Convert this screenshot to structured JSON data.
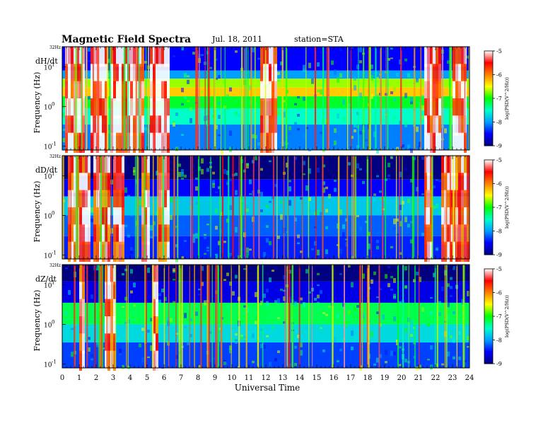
{
  "header": {
    "title": "Magnetic  Field  Spectra",
    "date": "Jul.  18,  2011",
    "station": "station=STA"
  },
  "chart_data": {
    "type": "heatmap",
    "xlabel": "Universal Time",
    "xlim": [
      0,
      24
    ],
    "x_ticks": [
      "0",
      "1",
      "2",
      "3",
      "4",
      "5",
      "6",
      "7",
      "8",
      "9",
      "10",
      "11",
      "12",
      "13",
      "14",
      "15",
      "16",
      "17",
      "18",
      "19",
      "20",
      "21",
      "22",
      "23",
      "24"
    ],
    "ylabel": "Frequency  (Hz)",
    "yscale": "log",
    "ylim": [
      0.08,
      32
    ],
    "y_top_label": "32Hz",
    "y_ticks": [
      {
        "value": 10,
        "label": "10",
        "exp": "1"
      },
      {
        "value": 1,
        "label": "10",
        "exp": "0"
      },
      {
        "value": 0.1,
        "label": "10",
        "exp": "-1"
      }
    ],
    "colorbar": {
      "label": "log(PSD(V^2/Hz))",
      "range": [
        -9,
        -5
      ],
      "ticks": [
        "-5",
        "-6",
        "-7",
        "-8",
        "-9"
      ],
      "colors": [
        "#000080",
        "#0000ff",
        "#00a0ff",
        "#00ffc8",
        "#00ff00",
        "#ffff00",
        "#ff8000",
        "#ff0000",
        "#ffffff"
      ]
    },
    "panels": [
      {
        "name": "dH/dt",
        "bands": [
          {
            "fmin": 8,
            "fmax": 32,
            "level": -8.5
          },
          {
            "fmin": 5,
            "fmax": 8,
            "level": -8.0
          },
          {
            "fmin": 3,
            "fmax": 5,
            "level": -6.7
          },
          {
            "fmin": 1.8,
            "fmax": 3,
            "level": -6.3
          },
          {
            "fmin": 0.9,
            "fmax": 1.8,
            "level": -7.1
          },
          {
            "fmin": 0.35,
            "fmax": 0.9,
            "level": -7.5
          },
          {
            "fmin": 0.08,
            "fmax": 0.35,
            "level": -8.1
          }
        ],
        "disturbed_intervals": [
          [
            0.1,
            1.3
          ],
          [
            1.6,
            2.6
          ],
          [
            2.8,
            4.7
          ],
          [
            5.1,
            6.2
          ],
          [
            11.6,
            12.6
          ],
          [
            21.2,
            22.2
          ],
          [
            23.0,
            23.8
          ]
        ],
        "disturbed_level": -5.2
      },
      {
        "name": "dD/dt",
        "bands": [
          {
            "fmin": 8,
            "fmax": 32,
            "level": -9.0
          },
          {
            "fmin": 3,
            "fmax": 8,
            "level": -8.5
          },
          {
            "fmin": 1.0,
            "fmax": 3,
            "level": -7.8
          },
          {
            "fmin": 0.3,
            "fmax": 1.0,
            "level": -8.2
          },
          {
            "fmin": 0.08,
            "fmax": 0.3,
            "level": -8.4
          }
        ],
        "disturbed_intervals": [
          [
            0.2,
            1.5
          ],
          [
            1.8,
            2.7
          ],
          [
            2.9,
            3.6
          ],
          [
            4.6,
            5.1
          ],
          [
            5.6,
            6.2
          ],
          [
            21.2,
            21.7
          ],
          [
            22.3,
            23.9
          ]
        ],
        "disturbed_level": -5.4
      },
      {
        "name": "dZ/dt",
        "bands": [
          {
            "fmin": 12,
            "fmax": 32,
            "level": -9.0
          },
          {
            "fmin": 3.5,
            "fmax": 12,
            "level": -8.6
          },
          {
            "fmin": 1.0,
            "fmax": 3.5,
            "level": -7.2
          },
          {
            "fmin": 0.35,
            "fmax": 1.0,
            "level": -7.7
          },
          {
            "fmin": 0.08,
            "fmax": 0.35,
            "level": -8.3
          }
        ],
        "disturbed_intervals": [
          [
            1.0,
            1.3
          ],
          [
            2.4,
            3.1
          ],
          [
            5.3,
            5.6
          ]
        ],
        "disturbed_level": -5.4
      }
    ]
  }
}
